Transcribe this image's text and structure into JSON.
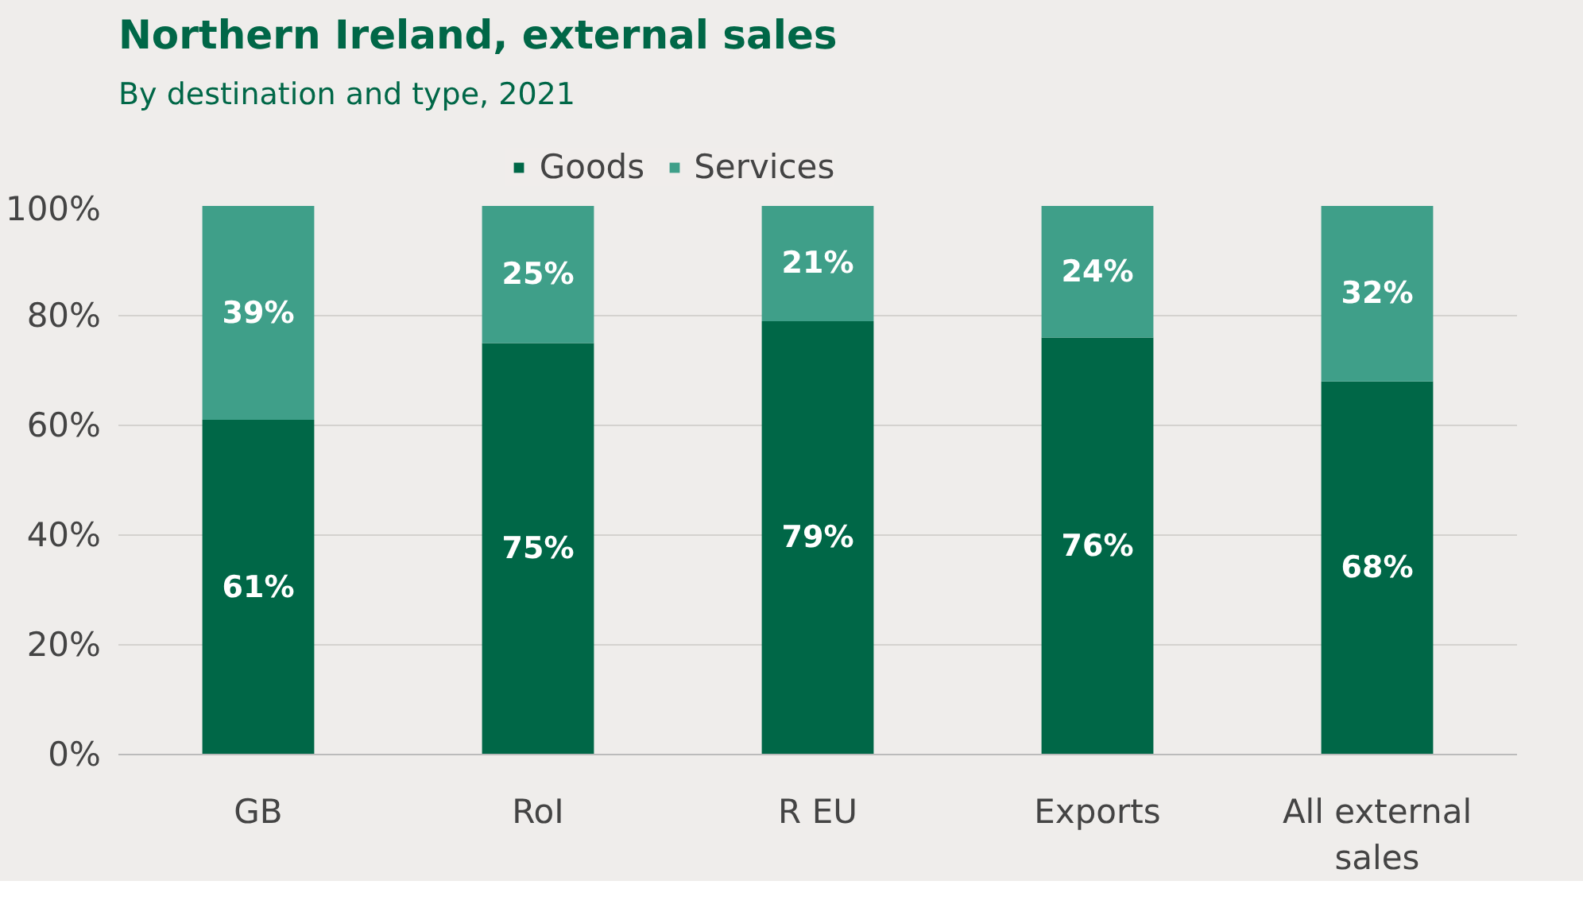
{
  "chart_data": {
    "type": "bar",
    "title": "Northern Ireland, external sales",
    "subtitle": "By destination and type, 2021",
    "stacked": true,
    "categories": [
      "GB",
      "RoI",
      "R EU",
      "Exports",
      "All external sales"
    ],
    "series": [
      {
        "name": "Goods",
        "color": "#006747",
        "values": [
          61,
          75,
          79,
          76,
          68
        ],
        "value_labels": [
          "61%",
          "75%",
          "79%",
          "76%",
          "68%"
        ]
      },
      {
        "name": "Services",
        "color": "#3f9f89",
        "values": [
          39,
          25,
          21,
          24,
          32
        ],
        "value_labels": [
          "39%",
          "25%",
          "21%",
          "24%",
          "32%"
        ]
      }
    ],
    "ylim": [
      0,
      100
    ],
    "yticks": [
      {
        "value": 0,
        "label": "0%"
      },
      {
        "value": 20,
        "label": "20%"
      },
      {
        "value": 40,
        "label": "40%"
      },
      {
        "value": 60,
        "label": "60%"
      },
      {
        "value": 80,
        "label": "80%"
      },
      {
        "value": 100,
        "label": "100%"
      }
    ],
    "grid": "y",
    "legend": "top"
  }
}
